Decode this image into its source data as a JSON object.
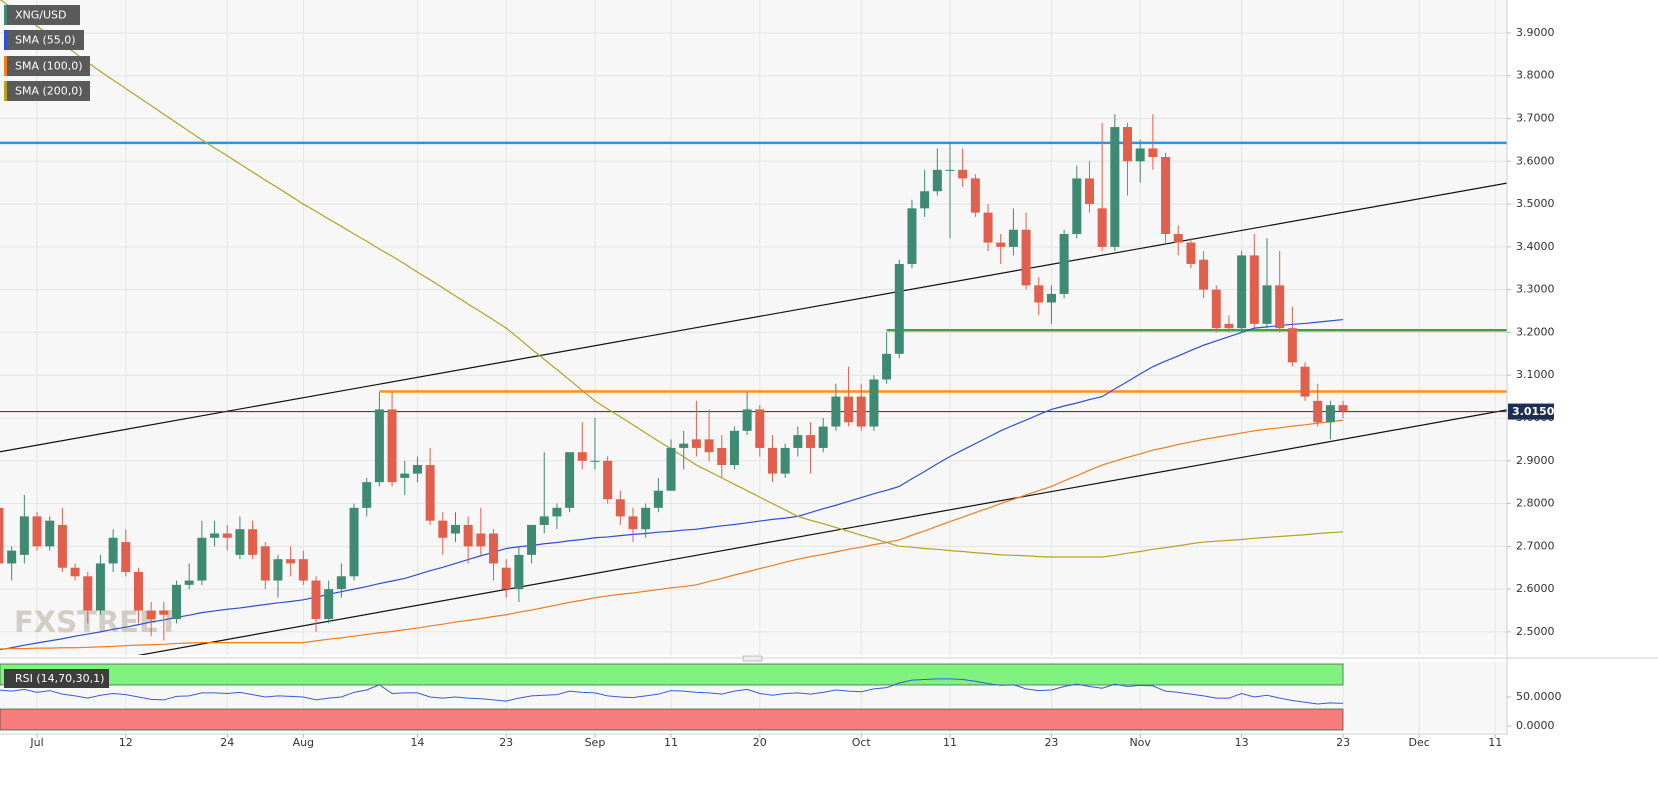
{
  "chart_data": {
    "type": "candlestick",
    "categories": [
      null,
      null,
      null,
      "Jul",
      null,
      null,
      null,
      null,
      null,
      null,
      "12",
      null,
      null,
      null,
      null,
      null,
      null,
      null,
      "24",
      null,
      null,
      null,
      null,
      null,
      "Aug",
      null,
      null,
      null,
      null,
      null,
      null,
      null,
      null,
      "14",
      null,
      null,
      null,
      null,
      null,
      null,
      "23",
      null,
      null,
      null,
      null,
      null,
      null,
      "Sep",
      null,
      null,
      null,
      null,
      null,
      "11",
      null,
      null,
      null,
      null,
      null,
      null,
      "20",
      null,
      null,
      null,
      null,
      null,
      null,
      null,
      "Oct",
      null,
      null,
      null,
      null,
      null,
      null,
      "11",
      null,
      null,
      null,
      null,
      null,
      null,
      null,
      "23",
      null,
      null,
      null,
      null,
      null,
      null,
      "Nov",
      null,
      null,
      null,
      null,
      null,
      null,
      null,
      "13",
      null,
      null,
      null,
      null,
      null,
      null,
      null,
      "23",
      null,
      null,
      null,
      null,
      null,
      "Dec",
      null,
      null,
      null,
      null,
      null,
      "11"
    ],
    "ohlc": {
      "name": "XNG/USD",
      "up_color": "#3e8a72",
      "down_color": "#e0604d",
      "open": [
        2.79,
        2.66,
        2.68,
        2.77,
        2.7,
        2.75,
        2.65,
        2.63,
        2.55,
        2.66,
        2.71,
        2.64,
        2.55,
        2.55,
        2.53,
        2.61,
        2.62,
        2.72,
        2.73,
        2.68,
        2.74,
        2.7,
        2.62,
        2.67,
        2.67,
        2.62,
        2.53,
        2.6,
        2.63,
        2.79,
        2.85,
        3.02,
        2.86,
        2.87,
        2.89,
        2.76,
        2.73,
        2.75,
        2.73,
        2.73,
        2.65,
        2.6,
        2.68,
        2.75,
        2.77,
        2.79,
        2.92,
        2.9,
        2.9,
        2.81,
        2.77,
        2.74,
        2.79,
        2.83,
        2.93,
        2.95,
        2.95,
        2.93,
        2.89,
        2.97,
        3.02,
        2.93,
        2.87,
        2.93,
        2.96,
        2.93,
        2.98,
        3.05,
        3.05,
        2.98,
        3.09,
        3.15,
        3.36,
        3.49,
        3.53,
        3.58,
        3.58,
        3.56,
        3.48,
        3.41,
        3.4,
        3.44,
        3.31,
        3.27,
        3.29,
        3.43,
        3.56,
        3.49,
        3.4,
        3.68,
        3.6,
        3.63,
        3.61,
        3.43,
        3.41,
        3.37,
        3.3,
        3.22,
        3.21,
        3.38,
        3.22,
        3.31,
        3.21,
        3.12,
        3.04,
        2.99,
        3.03,
        null,
        null,
        null,
        null,
        null,
        null,
        null,
        null,
        null,
        null,
        null,
        null
      ],
      "high": [
        2.87,
        2.7,
        2.82,
        2.78,
        2.77,
        2.79,
        2.66,
        2.64,
        2.68,
        2.74,
        2.74,
        2.65,
        2.57,
        2.57,
        2.62,
        2.66,
        2.76,
        2.76,
        2.75,
        2.77,
        2.76,
        2.71,
        2.68,
        2.7,
        2.69,
        2.63,
        2.62,
        2.66,
        2.8,
        2.86,
        3.06,
        3.06,
        2.9,
        2.91,
        2.93,
        2.78,
        2.78,
        2.77,
        2.79,
        2.74,
        2.67,
        2.7,
        2.75,
        2.92,
        2.8,
        2.92,
        2.99,
        3.0,
        2.91,
        2.83,
        2.79,
        2.8,
        2.86,
        2.95,
        2.97,
        3.04,
        3.02,
        2.96,
        2.98,
        3.06,
        3.03,
        2.96,
        2.94,
        2.98,
        2.99,
        3.0,
        3.08,
        3.12,
        3.08,
        3.1,
        3.2,
        3.37,
        3.51,
        3.58,
        3.63,
        3.64,
        3.63,
        3.57,
        3.5,
        3.43,
        3.49,
        3.48,
        3.33,
        3.31,
        3.44,
        3.59,
        3.6,
        3.69,
        3.71,
        3.69,
        3.65,
        3.71,
        3.62,
        3.45,
        3.42,
        3.39,
        3.31,
        3.24,
        3.39,
        3.43,
        3.42,
        3.39,
        3.26,
        3.13,
        3.08,
        3.04,
        3.04,
        null,
        null,
        null,
        null,
        null,
        null,
        null,
        null,
        null,
        null,
        null,
        null
      ],
      "low": [
        2.64,
        2.62,
        2.66,
        2.69,
        2.69,
        2.64,
        2.62,
        2.52,
        2.54,
        2.64,
        2.63,
        2.52,
        2.49,
        2.48,
        2.52,
        2.6,
        2.61,
        2.7,
        2.69,
        2.67,
        2.67,
        2.6,
        2.58,
        2.63,
        2.61,
        2.5,
        2.52,
        2.58,
        2.62,
        2.77,
        2.84,
        2.84,
        2.82,
        2.85,
        2.75,
        2.68,
        2.71,
        2.66,
        2.68,
        2.62,
        2.58,
        2.57,
        2.66,
        2.73,
        2.74,
        2.78,
        2.88,
        2.88,
        2.8,
        2.75,
        2.71,
        2.72,
        2.78,
        2.83,
        2.88,
        2.91,
        2.9,
        2.86,
        2.88,
        2.96,
        2.91,
        2.85,
        2.86,
        2.91,
        2.87,
        2.92,
        2.97,
        2.98,
        2.97,
        2.97,
        3.08,
        3.14,
        3.35,
        3.47,
        3.52,
        3.42,
        3.54,
        3.47,
        3.39,
        3.36,
        3.38,
        3.3,
        3.24,
        3.22,
        3.28,
        3.42,
        3.48,
        3.39,
        3.39,
        3.52,
        3.55,
        3.58,
        3.41,
        3.38,
        3.35,
        3.28,
        3.2,
        3.2,
        3.2,
        3.21,
        3.21,
        3.2,
        3.12,
        3.04,
        2.98,
        2.95,
        3.0,
        null,
        null,
        null,
        null,
        null,
        null,
        null,
        null,
        null,
        null,
        null,
        null
      ],
      "close": [
        2.66,
        2.69,
        2.77,
        2.7,
        2.76,
        2.65,
        2.63,
        2.55,
        2.66,
        2.72,
        2.64,
        2.55,
        2.53,
        2.54,
        2.61,
        2.62,
        2.72,
        2.73,
        2.72,
        2.74,
        2.68,
        2.62,
        2.67,
        2.66,
        2.62,
        2.53,
        2.6,
        2.63,
        2.79,
        2.85,
        3.02,
        2.85,
        2.87,
        2.89,
        2.76,
        2.72,
        2.75,
        2.7,
        2.7,
        2.66,
        2.6,
        2.68,
        2.75,
        2.77,
        2.79,
        2.92,
        2.9,
        2.9,
        2.81,
        2.77,
        2.74,
        2.79,
        2.83,
        2.93,
        2.94,
        2.93,
        2.92,
        2.89,
        2.97,
        3.02,
        2.93,
        2.87,
        2.93,
        2.96,
        2.93,
        2.98,
        3.05,
        2.99,
        2.98,
        3.09,
        3.15,
        3.36,
        3.49,
        3.53,
        3.58,
        3.58,
        3.56,
        3.48,
        3.41,
        3.4,
        3.44,
        3.31,
        3.27,
        3.29,
        3.43,
        3.56,
        3.5,
        3.4,
        3.68,
        3.6,
        3.63,
        3.61,
        3.43,
        3.41,
        3.36,
        3.3,
        3.21,
        3.21,
        3.38,
        3.22,
        3.31,
        3.21,
        3.13,
        3.05,
        2.99,
        3.03,
        3.015,
        null,
        null,
        null,
        null,
        null,
        null,
        null,
        null,
        null,
        null,
        null,
        null
      ]
    },
    "sma": [
      {
        "name": "SMA (55,0)",
        "color": "#2f4fd6",
        "values": [
          2.458,
          2.463,
          2.469,
          2.474,
          2.479,
          2.484,
          2.49,
          2.495,
          2.5,
          2.506,
          2.511,
          2.517,
          2.523,
          2.528,
          2.534,
          2.539,
          2.545,
          2.549,
          2.553,
          2.556,
          2.56,
          2.564,
          2.568,
          2.571,
          2.575,
          2.581,
          2.588,
          2.594,
          2.6,
          2.606,
          2.613,
          2.619,
          2.625,
          2.634,
          2.643,
          2.651,
          2.66,
          2.669,
          2.678,
          2.686,
          2.695,
          2.699,
          2.702,
          2.706,
          2.709,
          2.713,
          2.716,
          2.72,
          2.722,
          2.725,
          2.728,
          2.73,
          2.733,
          2.735,
          2.738,
          2.74,
          2.744,
          2.748,
          2.751,
          2.755,
          2.759,
          2.763,
          2.766,
          2.77,
          2.779,
          2.788,
          2.796,
          2.805,
          2.814,
          2.823,
          2.831,
          2.84,
          2.858,
          2.875,
          2.893,
          2.91,
          2.925,
          2.94,
          2.955,
          2.97,
          2.983,
          2.995,
          3.008,
          3.02,
          3.028,
          3.035,
          3.043,
          3.05,
          3.068,
          3.085,
          3.103,
          3.12,
          3.133,
          3.145,
          3.158,
          3.17,
          3.18,
          3.19,
          3.2,
          3.21,
          3.213,
          3.216,
          3.219,
          3.221,
          3.224,
          3.227,
          3.23,
          null,
          null,
          null,
          null,
          null,
          null,
          null,
          null,
          null,
          null,
          null,
          null
        ]
      },
      {
        "name": "SMA (100,0)",
        "color": "#f07d1e",
        "values": [
          2.46,
          2.461,
          2.461,
          2.462,
          2.462,
          2.463,
          2.463,
          2.464,
          2.465,
          2.466,
          2.468,
          2.469,
          2.47,
          2.471,
          2.473,
          2.474,
          2.475,
          2.475,
          2.475,
          2.475,
          2.475,
          2.475,
          2.475,
          2.475,
          2.475,
          2.479,
          2.483,
          2.486,
          2.49,
          2.494,
          2.498,
          2.501,
          2.505,
          2.509,
          2.514,
          2.518,
          2.523,
          2.527,
          2.531,
          2.536,
          2.54,
          2.546,
          2.551,
          2.557,
          2.563,
          2.569,
          2.574,
          2.58,
          2.584,
          2.588,
          2.591,
          2.595,
          2.599,
          2.603,
          2.606,
          2.61,
          2.618,
          2.625,
          2.633,
          2.64,
          2.648,
          2.655,
          2.663,
          2.67,
          2.676,
          2.681,
          2.687,
          2.693,
          2.698,
          2.704,
          2.709,
          2.715,
          2.726,
          2.736,
          2.747,
          2.758,
          2.768,
          2.779,
          2.789,
          2.8,
          2.81,
          2.82,
          2.83,
          2.84,
          2.853,
          2.865,
          2.878,
          2.89,
          2.899,
          2.908,
          2.916,
          2.925,
          2.931,
          2.938,
          2.944,
          2.95,
          2.955,
          2.96,
          2.965,
          2.97,
          2.974,
          2.977,
          2.981,
          2.984,
          2.988,
          2.991,
          2.995,
          null,
          null,
          null,
          null,
          null,
          null,
          null,
          null,
          null,
          null,
          null,
          null
        ]
      },
      {
        "name": "SMA (200,0)",
        "color": "#b5a421",
        "values": [
          3.98,
          3.959,
          3.938,
          3.916,
          3.895,
          3.874,
          3.853,
          3.831,
          3.81,
          3.79,
          3.77,
          3.75,
          3.73,
          3.71,
          3.69,
          3.67,
          3.65,
          3.631,
          3.613,
          3.594,
          3.575,
          3.556,
          3.538,
          3.519,
          3.5,
          3.483,
          3.465,
          3.448,
          3.43,
          3.413,
          3.395,
          3.378,
          3.36,
          3.341,
          3.323,
          3.304,
          3.285,
          3.266,
          3.248,
          3.229,
          3.21,
          3.186,
          3.161,
          3.137,
          3.113,
          3.089,
          3.064,
          3.04,
          3.021,
          3.003,
          2.984,
          2.965,
          2.946,
          2.928,
          2.909,
          2.89,
          2.875,
          2.86,
          2.845,
          2.83,
          2.815,
          2.8,
          2.785,
          2.77,
          2.761,
          2.753,
          2.744,
          2.735,
          2.726,
          2.718,
          2.709,
          2.7,
          2.698,
          2.695,
          2.693,
          2.69,
          2.688,
          2.685,
          2.683,
          2.68,
          2.679,
          2.678,
          2.676,
          2.675,
          2.675,
          2.675,
          2.675,
          2.675,
          2.679,
          2.684,
          2.688,
          2.693,
          2.697,
          2.701,
          2.706,
          2.71,
          2.712,
          2.714,
          2.716,
          2.719,
          2.721,
          2.723,
          2.725,
          2.727,
          2.73,
          2.732,
          2.734,
          null,
          null,
          null,
          null,
          null,
          null,
          null,
          null,
          null,
          null,
          null,
          null
        ]
      }
    ],
    "levels": [
      {
        "value": 3.643,
        "color": "#2f93e0"
      },
      {
        "value": 3.205,
        "color": "#3da33d"
      },
      {
        "value": 3.062,
        "color": "#f5941e"
      }
    ],
    "trendlines": [
      {
        "values": [
          2.921,
          3.549
        ],
        "color": "#111111"
      },
      {
        "values": [
          2.387,
          3.019
        ],
        "color": "#111111"
      }
    ],
    "last_price": {
      "value": 3.015,
      "label": "3.0150",
      "color": "#1f2d55"
    },
    "ylim": [
      2.446,
      3.977
    ],
    "yticks": [
      {
        "value": 2.5,
        "label": "2.5000"
      },
      {
        "value": 2.6,
        "label": "2.6000"
      },
      {
        "value": 2.7,
        "label": "2.7000"
      },
      {
        "value": 2.8,
        "label": "2.8000"
      },
      {
        "value": 2.9,
        "label": "2.9000"
      },
      {
        "value": 3.0,
        "label": "3.0000"
      },
      {
        "value": 3.1,
        "label": "3.1000"
      },
      {
        "value": 3.2,
        "label": "3.2000"
      },
      {
        "value": 3.3,
        "label": "3.3000"
      },
      {
        "value": 3.4,
        "label": "3.4000"
      },
      {
        "value": 3.5,
        "label": "3.5000"
      },
      {
        "value": 3.6,
        "label": "3.6000"
      },
      {
        "value": 3.7,
        "label": "3.7000"
      },
      {
        "value": 3.8,
        "label": "3.8000"
      },
      {
        "value": 3.9,
        "label": "3.9000"
      }
    ],
    "grid": true,
    "watermark": "FXSTREET",
    "rsi": {
      "name": "RSI (14,70,30,1)",
      "color": "#3a5bd8",
      "values": [
        62,
        60,
        63,
        58,
        61,
        55,
        52,
        48,
        53,
        56,
        54,
        50,
        46,
        45,
        51,
        52,
        57,
        57,
        56,
        58,
        54,
        50,
        52,
        51,
        50,
        45,
        48,
        50,
        58,
        62,
        71,
        56,
        57,
        57,
        50,
        48,
        50,
        48,
        47,
        45,
        43,
        48,
        52,
        53,
        54,
        60,
        58,
        57,
        52,
        50,
        49,
        52,
        55,
        61,
        60,
        58,
        57,
        55,
        60,
        63,
        56,
        53,
        56,
        57,
        55,
        58,
        62,
        60,
        59,
        64,
        66,
        74,
        79,
        80,
        81,
        81,
        80,
        77,
        73,
        70,
        71,
        64,
        61,
        62,
        68,
        72,
        68,
        65,
        72,
        68,
        70,
        69,
        60,
        58,
        55,
        52,
        48,
        48,
        56,
        50,
        53,
        48,
        44,
        41,
        38,
        40,
        39,
        null,
        null,
        null,
        null,
        null,
        null,
        null,
        null,
        null,
        null,
        null,
        null
      ],
      "ylim": [
        -10,
        110
      ],
      "yticks": [
        {
          "value": 50,
          "label": "50.0000"
        },
        {
          "value": 0,
          "label": "0.0000"
        }
      ]
    }
  }
}
